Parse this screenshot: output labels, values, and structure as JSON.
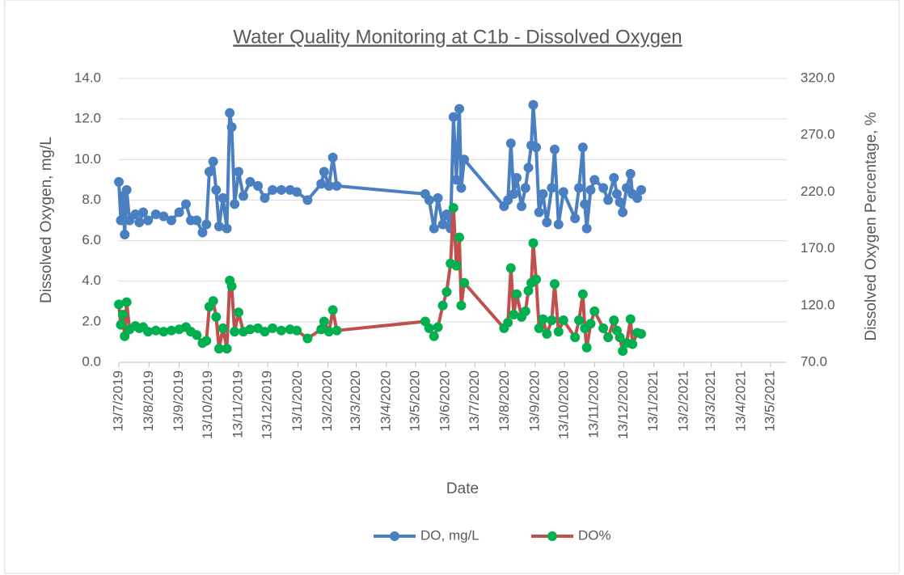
{
  "chart_data": {
    "type": "line",
    "title": "Water Quality Monitoring at C1b - Dissolved Oxygen",
    "xlabel": "Date",
    "ylabel": "Dissolved Oxygen, mg/L",
    "y2label": "Dissolved Oxygen Percentage, %",
    "x": [
      "2019-07-13",
      "2019-07-15",
      "2019-07-17",
      "2019-07-19",
      "2019-07-21",
      "2019-07-24",
      "2019-07-30",
      "2019-08-03",
      "2019-08-07",
      "2019-08-12",
      "2019-08-20",
      "2019-08-28",
      "2019-09-05",
      "2019-09-13",
      "2019-09-20",
      "2019-09-25",
      "2019-10-01",
      "2019-10-07",
      "2019-10-11",
      "2019-10-14",
      "2019-10-18",
      "2019-10-21",
      "2019-10-24",
      "2019-10-28",
      "2019-11-01",
      "2019-11-04",
      "2019-11-06",
      "2019-11-09",
      "2019-11-13",
      "2019-11-18",
      "2019-11-25",
      "2019-12-03",
      "2019-12-10",
      "2019-12-18",
      "2019-12-27",
      "2020-01-05",
      "2020-01-12",
      "2020-01-23",
      "2020-02-06",
      "2020-02-09",
      "2020-02-14",
      "2020-02-18",
      "2020-02-22",
      "2020-05-23",
      "2020-05-27",
      "2020-06-01",
      "2020-06-05",
      "2020-06-10",
      "2020-06-14",
      "2020-06-18",
      "2020-06-21",
      "2020-06-24",
      "2020-06-27",
      "2020-06-29",
      "2020-07-02",
      "2020-08-12",
      "2020-08-16",
      "2020-08-19",
      "2020-08-22",
      "2020-08-25",
      "2020-08-30",
      "2020-09-03",
      "2020-09-06",
      "2020-09-09",
      "2020-09-11",
      "2020-09-14",
      "2020-09-17",
      "2020-09-21",
      "2020-09-25",
      "2020-09-30",
      "2020-10-03",
      "2020-10-07",
      "2020-10-12",
      "2020-10-24",
      "2020-10-28",
      "2020-11-01",
      "2020-11-03",
      "2020-11-05",
      "2020-11-09",
      "2020-11-13",
      "2020-11-22",
      "2020-11-27",
      "2020-12-03",
      "2020-12-06",
      "2020-12-09",
      "2020-12-12",
      "2020-12-16",
      "2020-12-20",
      "2020-12-22",
      "2020-12-27",
      "2020-12-31"
    ],
    "series": [
      {
        "name": "DO, mg/L",
        "color": "#4a7fc1",
        "marker_color": "#4a7fc1",
        "values": [
          8.9,
          7.0,
          8.2,
          6.3,
          8.5,
          7.0,
          7.3,
          6.9,
          7.4,
          7.0,
          7.3,
          7.2,
          7.0,
          7.4,
          7.8,
          7.0,
          7.0,
          6.4,
          6.8,
          9.4,
          9.9,
          8.5,
          6.7,
          8.1,
          6.6,
          12.3,
          11.6,
          7.8,
          9.4,
          8.2,
          8.9,
          8.7,
          8.1,
          8.5,
          8.5,
          8.5,
          8.4,
          8.0,
          8.8,
          9.4,
          8.7,
          10.1,
          8.7,
          8.3,
          8.0,
          6.6,
          8.1,
          6.8,
          7.3,
          6.6,
          12.1,
          9.0,
          12.5,
          8.6,
          10.0,
          7.7,
          8.0,
          10.8,
          8.3,
          9.1,
          7.7,
          8.6,
          9.6,
          10.7,
          12.7,
          10.6,
          7.4,
          8.3,
          6.9,
          8.6,
          10.5,
          6.8,
          8.4,
          7.1,
          8.6,
          10.6,
          7.8,
          6.6,
          8.5,
          9.0,
          8.6,
          8.0,
          9.1,
          8.3,
          7.9,
          7.4,
          8.6,
          9.3,
          8.3,
          8.1,
          8.5
        ]
      },
      {
        "name": "DO%",
        "color": "#c0504d",
        "marker_color": "#00b050",
        "axis": "y2",
        "values": [
          121,
          103,
          112,
          93,
          123,
          99,
          102,
          100,
          101,
          97,
          98,
          97,
          98,
          99,
          101,
          97,
          94,
          87,
          89,
          119,
          124,
          110,
          82,
          100,
          82,
          142,
          137,
          97,
          114,
          97,
          99,
          100,
          97,
          100,
          98,
          99,
          98,
          91,
          99,
          106,
          97,
          116,
          98,
          106,
          100,
          93,
          101,
          120,
          132,
          157,
          206,
          155,
          180,
          120,
          140,
          100,
          105,
          153,
          112,
          130,
          110,
          115,
          133,
          140,
          175,
          143,
          100,
          108,
          95,
          107,
          139,
          97,
          107,
          92,
          107,
          130,
          100,
          83,
          104,
          115,
          100,
          92,
          107,
          98,
          92,
          80,
          87,
          108,
          86,
          96,
          95
        ]
      }
    ],
    "xlim": [
      "2019-07-13",
      "2021-05-13"
    ],
    "xticks": [
      {
        "value": "2019-07-13",
        "label": "13/7/2019"
      },
      {
        "value": "2019-08-13",
        "label": "13/8/2019"
      },
      {
        "value": "2019-09-13",
        "label": "13/9/2019"
      },
      {
        "value": "2019-10-13",
        "label": "13/10/2019"
      },
      {
        "value": "2019-11-13",
        "label": "13/11/2019"
      },
      {
        "value": "2019-12-13",
        "label": "13/12/2019"
      },
      {
        "value": "2020-01-13",
        "label": "13/1/2020"
      },
      {
        "value": "2020-02-13",
        "label": "13/2/2020"
      },
      {
        "value": "2020-03-13",
        "label": "13/3/2020"
      },
      {
        "value": "2020-04-13",
        "label": "13/4/2020"
      },
      {
        "value": "2020-05-13",
        "label": "13/5/2020"
      },
      {
        "value": "2020-06-13",
        "label": "13/6/2020"
      },
      {
        "value": "2020-07-13",
        "label": "13/7/2020"
      },
      {
        "value": "2020-08-13",
        "label": "13/8/2020"
      },
      {
        "value": "2020-09-13",
        "label": "13/9/2020"
      },
      {
        "value": "2020-10-13",
        "label": "13/10/2020"
      },
      {
        "value": "2020-11-13",
        "label": "13/11/2020"
      },
      {
        "value": "2020-12-13",
        "label": "13/12/2020"
      },
      {
        "value": "2021-01-13",
        "label": "13/1/2021"
      },
      {
        "value": "2021-02-13",
        "label": "13/2/2021"
      },
      {
        "value": "2021-03-13",
        "label": "13/3/2021"
      },
      {
        "value": "2021-04-13",
        "label": "13/4/2021"
      },
      {
        "value": "2021-05-13",
        "label": "13/5/2021"
      }
    ],
    "ylim": [
      0,
      14
    ],
    "yticks": [
      {
        "value": 0,
        "label": "0.0"
      },
      {
        "value": 2,
        "label": "2.0"
      },
      {
        "value": 4,
        "label": "4.0"
      },
      {
        "value": 6,
        "label": "6.0"
      },
      {
        "value": 8,
        "label": "8.0"
      },
      {
        "value": 10,
        "label": "10.0"
      },
      {
        "value": 12,
        "label": "12.0"
      },
      {
        "value": 14,
        "label": "14.0"
      }
    ],
    "y2lim": [
      70,
      320
    ],
    "y2ticks": [
      {
        "value": 70,
        "label": "70.0"
      },
      {
        "value": 120,
        "label": "120.0"
      },
      {
        "value": 170,
        "label": "170.0"
      },
      {
        "value": 220,
        "label": "220.0"
      },
      {
        "value": 270,
        "label": "270.0"
      },
      {
        "value": 320,
        "label": "320.0"
      }
    ],
    "grid": true,
    "legend": "bottom"
  }
}
